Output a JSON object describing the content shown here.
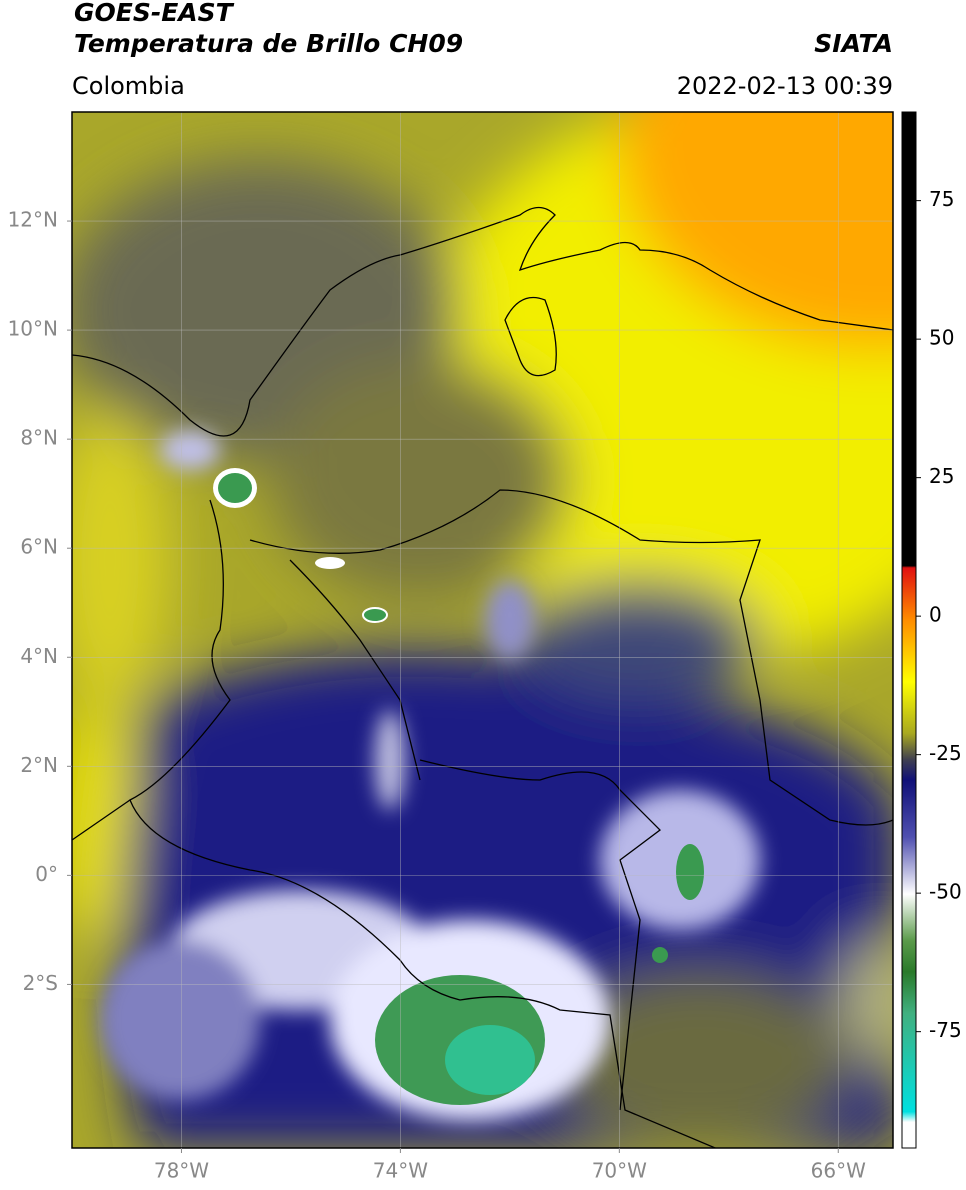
{
  "header": {
    "title_line1": "GOES-EAST",
    "title_line2": "Temperatura de Brillo CH09",
    "region": "Colombia",
    "source": "SIATA",
    "timestamp": "2022-02-13 00:39"
  },
  "map": {
    "xlim": [
      -80,
      -65
    ],
    "ylim": [
      -5,
      14
    ],
    "grid": true,
    "xticks": [
      {
        "value": -78,
        "label": "78°W"
      },
      {
        "value": -74,
        "label": "74°W"
      },
      {
        "value": -70,
        "label": "70°W"
      },
      {
        "value": -66,
        "label": "66°W"
      }
    ],
    "yticks": [
      {
        "value": 12,
        "label": "12°N"
      },
      {
        "value": 10,
        "label": "10°N"
      },
      {
        "value": 8,
        "label": "8°N"
      },
      {
        "value": 6,
        "label": "6°N"
      },
      {
        "value": 4,
        "label": "4°N"
      },
      {
        "value": 2,
        "label": "2°N"
      },
      {
        "value": 0,
        "label": "0°"
      },
      {
        "value": -2,
        "label": "2°S"
      }
    ]
  },
  "colorbar": {
    "lim": [
      -96,
      91
    ],
    "ticks": [
      75,
      50,
      25,
      0,
      -25,
      -50,
      -75
    ]
  }
}
